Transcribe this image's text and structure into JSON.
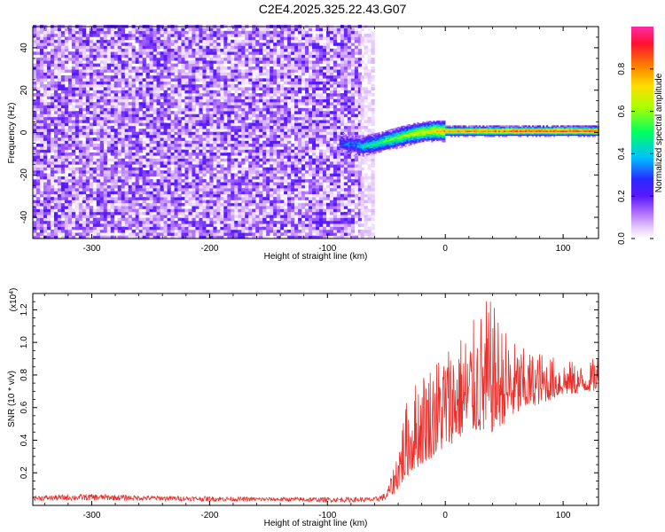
{
  "title": "C2E4.2025.325.22.43.G07",
  "colors": {
    "series": "#e8302c",
    "axis": "#000000",
    "background": "#ffffff",
    "colormap": [
      "#ffffff",
      "#e6ccff",
      "#b070ff",
      "#7a1cff",
      "#2a2aff",
      "#00bfff",
      "#00ff60",
      "#ffee00",
      "#ff7a00",
      "#ff1030",
      "#ff2aa8"
    ]
  },
  "chart_data": [
    {
      "type": "heatmap",
      "xlabel": "Height of straight line (km)",
      "ylabel": "Frequency (Hz)",
      "xlim": [
        -350,
        130
      ],
      "ylim": [
        -50,
        50
      ],
      "xticks": [
        -300,
        -200,
        -100,
        0,
        100
      ],
      "yticks": [
        -40,
        -20,
        0,
        20,
        40
      ],
      "colorbar": {
        "label": "Normalized spectral amplitude",
        "range": [
          0,
          1
        ],
        "ticks": [
          "0.0",
          "0.2",
          "0.4",
          "0.6",
          "0.8"
        ],
        "tick_values": [
          0.0,
          0.2,
          0.4,
          0.6,
          0.8
        ]
      },
      "features": {
        "noise_region_x": [
          -350,
          -72
        ],
        "noise_amplitude": 0.1,
        "signal_track": {
          "x": [
            -90,
            -80,
            -70,
            -60,
            -50,
            -40,
            -30,
            -20,
            -10,
            0,
            20,
            40,
            60,
            80,
            100,
            130
          ],
          "frequency": [
            -5,
            -6,
            -6.5,
            -5.5,
            -4,
            -2.5,
            -1,
            0,
            0.5,
            0.5,
            0.5,
            0.5,
            0.5,
            0.5,
            0.5,
            0.5
          ],
          "amplitude": [
            0.3,
            0.35,
            0.45,
            0.5,
            0.55,
            0.6,
            0.65,
            0.7,
            0.75,
            0.8,
            0.85,
            0.85,
            0.9,
            0.9,
            0.9,
            0.9
          ]
        }
      }
    },
    {
      "type": "line",
      "xlabel": "Height of straight line (km)",
      "ylabel": "SNR (10 * v/v)",
      "y_multiplier": "(x10",
      "y_multiplier_exp": "4",
      "y_multiplier_close": ")",
      "xlim": [
        -350,
        130
      ],
      "ylim": [
        0,
        1.3
      ],
      "xticks": [
        -300,
        -200,
        -100,
        0,
        100
      ],
      "yticks": [
        0.2,
        0.4,
        0.6,
        0.8,
        1.0,
        1.2
      ],
      "ytick_labels": [
        "0.2",
        "0.4",
        "0.6",
        "0.8",
        "1.0",
        "1.2"
      ],
      "series": [
        {
          "x": [
            -350,
            -300,
            -250,
            -200,
            -150,
            -100,
            -60,
            -50,
            -45,
            -40,
            -35,
            -30,
            -20,
            -10,
            0,
            10,
            20,
            30,
            35,
            40,
            50,
            60,
            70,
            80,
            90,
            100,
            110,
            120,
            130
          ],
          "y_low": [
            0.03,
            0.03,
            0.03,
            0.025,
            0.025,
            0.02,
            0.02,
            0.03,
            0.06,
            0.1,
            0.15,
            0.2,
            0.25,
            0.3,
            0.35,
            0.4,
            0.45,
            0.45,
            0.4,
            0.45,
            0.5,
            0.55,
            0.6,
            0.62,
            0.65,
            0.68,
            0.68,
            0.7,
            0.7
          ],
          "y_high": [
            0.06,
            0.07,
            0.06,
            0.055,
            0.05,
            0.05,
            0.05,
            0.08,
            0.2,
            0.4,
            0.6,
            0.7,
            0.85,
            0.9,
            1.0,
            1.05,
            1.1,
            1.2,
            1.28,
            1.25,
            1.1,
            1.0,
            0.95,
            0.95,
            0.92,
            0.9,
            0.88,
            0.85,
            0.95
          ]
        }
      ]
    }
  ]
}
